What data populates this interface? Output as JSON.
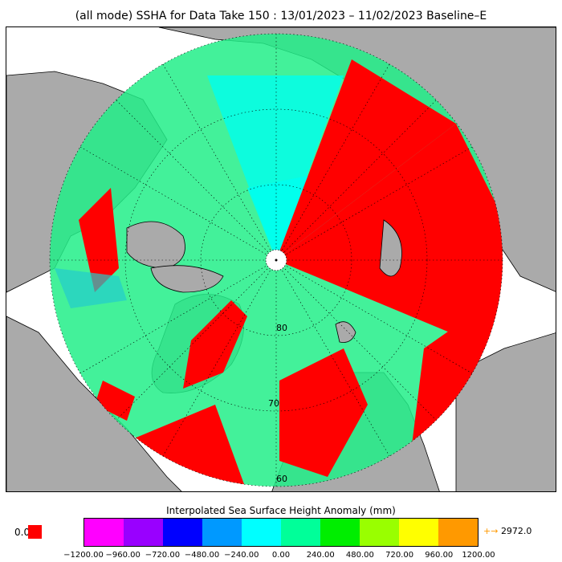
{
  "title": "(all mode) SSHA for Data Take 150 : 13/01/2023 – 11/02/2023 Baseline–E",
  "map": {
    "latitude_labels": [
      "80",
      "70",
      "60"
    ],
    "colors": {
      "land": "#aaaaaa",
      "ocean_background": "#ffffff",
      "graticule": "#000000",
      "coverage_red": "#ff0000",
      "coverage_green": "#22ee88",
      "coverage_cyan": "#00ffee"
    }
  },
  "legend": {
    "title": "Interpolated Sea Surface Height Anomaly (mm)",
    "nodata_value": "0.0",
    "nodata_color": "#ff0000",
    "colors": [
      "#ff00ff",
      "#9900ff",
      "#0000ff",
      "#0099ff",
      "#00ffff",
      "#00ff99",
      "#00ee00",
      "#99ff00",
      "#ffff00",
      "#ff9900"
    ],
    "ticks": [
      "−1200.00",
      "−960.00",
      "−720.00",
      "−480.00",
      "−240.00",
      "0.00",
      "240.00",
      "480.00",
      "720.00",
      "960.00",
      "1200.00"
    ],
    "overflow_arrow": "+→",
    "overflow_value": "2972.0"
  }
}
